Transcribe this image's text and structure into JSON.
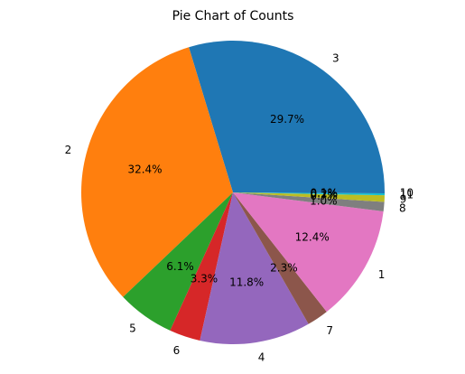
{
  "chart_data": {
    "type": "pie",
    "title": "Pie Chart of Counts",
    "start_angle_deg": 0,
    "direction": "counterclockwise",
    "slices": [
      {
        "label": "3",
        "value": 29.7,
        "pct_label": "29.7%",
        "color": "#1f77b4"
      },
      {
        "label": "2",
        "value": 32.4,
        "pct_label": "32.4%",
        "color": "#ff7f0e"
      },
      {
        "label": "5",
        "value": 6.1,
        "pct_label": "6.1%",
        "color": "#2ca02c"
      },
      {
        "label": "6",
        "value": 3.3,
        "pct_label": "3.3%",
        "color": "#d62728"
      },
      {
        "label": "4",
        "value": 11.8,
        "pct_label": "11.8%",
        "color": "#9467bd"
      },
      {
        "label": "7",
        "value": 2.3,
        "pct_label": "2.3%",
        "color": "#8c564b"
      },
      {
        "label": "1",
        "value": 12.4,
        "pct_label": "12.4%",
        "color": "#e377c2"
      },
      {
        "label": "8",
        "value": 1.0,
        "pct_label": "1.0%",
        "color": "#7f7f7f"
      },
      {
        "label": "9",
        "value": 0.7,
        "pct_label": "0.7%",
        "color": "#bcbd22"
      },
      {
        "label": "11",
        "value": 0.2,
        "pct_label": "0.2%",
        "color": "#17becf"
      },
      {
        "label": "10",
        "value": 0.1,
        "pct_label": "0.1%",
        "color": "#1f77b4"
      }
    ]
  }
}
